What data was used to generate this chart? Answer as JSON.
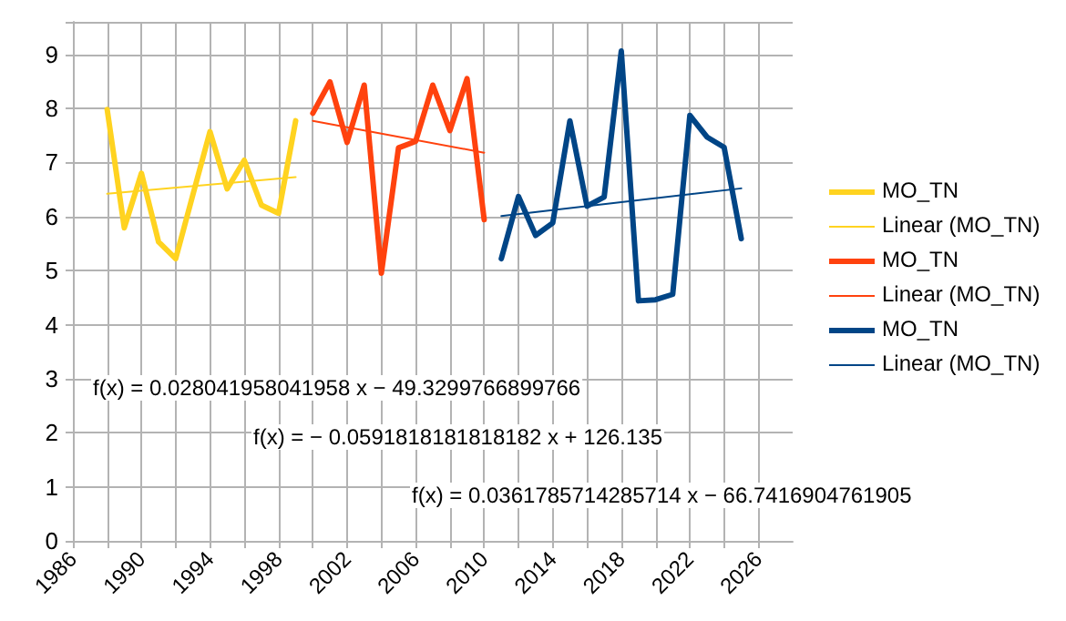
{
  "chart_data": {
    "type": "line",
    "xlim": [
      1986,
      2028
    ],
    "ylim": [
      0,
      9.6
    ],
    "xticks": [
      1986,
      {
        "value": 1988,
        "label": null
      },
      1990,
      {
        "value": 1992,
        "label": null
      },
      1994,
      {
        "value": 1996,
        "label": null
      },
      1998,
      {
        "value": 2000,
        "label": null
      },
      2002,
      {
        "value": 2004,
        "label": null
      },
      2006,
      {
        "value": 2008,
        "label": null
      },
      2010,
      {
        "value": 2012,
        "label": null
      },
      2014,
      {
        "value": 2016,
        "label": null
      },
      2018,
      {
        "value": 2020,
        "label": null
      },
      2022,
      {
        "value": 2024,
        "label": null
      },
      2026
    ],
    "yticks": [
      0,
      1,
      2,
      3,
      4,
      5,
      6,
      7,
      8,
      9
    ],
    "grid": true,
    "legend": "right",
    "marker": "none",
    "series": [
      {
        "name": "MO_TN",
        "color": "#ffd320",
        "x": [
          1988,
          1989,
          1990,
          1991,
          1992,
          1993,
          1994,
          1995,
          1996,
          1997,
          1998,
          1999
        ],
        "values": [
          7.98,
          5.79,
          6.8,
          5.53,
          5.22,
          6.4,
          7.57,
          6.51,
          7.04,
          6.21,
          6.06,
          7.77
        ]
      },
      {
        "name": "Linear (MO_TN)",
        "color": "#ffd320",
        "x": [
          1988,
          1999
        ],
        "values": [
          6.42,
          6.73
        ]
      },
      {
        "name": "MO_TN",
        "color": "#ff420e",
        "x": [
          2000,
          2001,
          2002,
          2003,
          2004,
          2005,
          2006,
          2007,
          2008,
          2009,
          2010
        ],
        "values": [
          7.91,
          8.49,
          7.37,
          8.43,
          4.95,
          7.27,
          7.39,
          8.43,
          7.59,
          8.55,
          5.94
        ]
      },
      {
        "name": "Linear (MO_TN)",
        "color": "#ff420e",
        "x": [
          2000,
          2010
        ],
        "values": [
          7.77,
          7.18
        ]
      },
      {
        "name": "MO_TN",
        "color": "#004586",
        "x": [
          2011,
          2012,
          2013,
          2014,
          2015,
          2016,
          2017,
          2018,
          2019,
          2020,
          2021,
          2022,
          2023,
          2024,
          2025
        ],
        "values": [
          5.22,
          6.37,
          5.65,
          5.88,
          7.77,
          6.19,
          6.36,
          9.06,
          4.44,
          4.46,
          4.56,
          7.87,
          7.47,
          7.28,
          5.59
        ]
      },
      {
        "name": "Linear (MO_TN)",
        "color": "#004586",
        "x": [
          2011,
          2025
        ],
        "values": [
          6.01,
          6.52
        ]
      }
    ],
    "annotations": [
      "f(x) = 0.028041958041958 x − 49.3299766899766",
      "f(x) = − 0.0591818181818182 x + 126.135",
      "f(x) = 0.0361785714285714 x − 66.7416904761905"
    ]
  }
}
